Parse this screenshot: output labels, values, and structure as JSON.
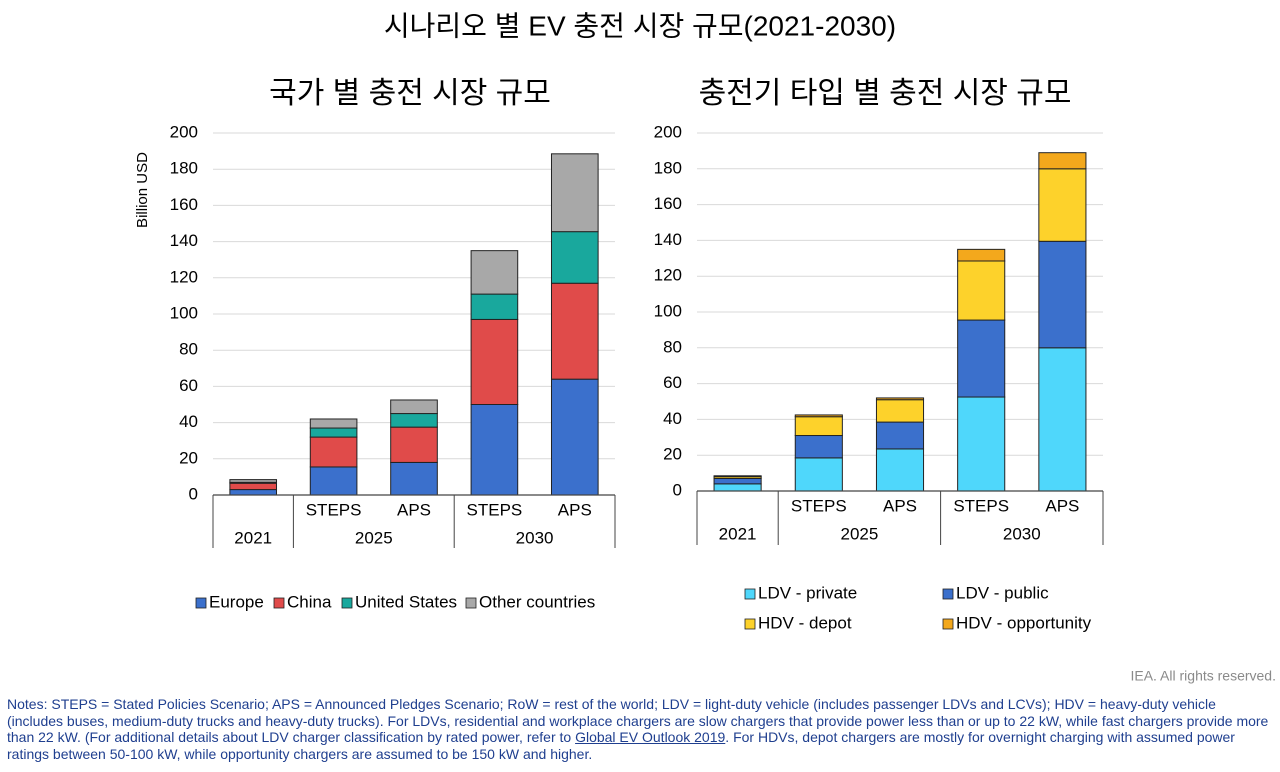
{
  "title": "시나리오 별 EV 충전 시장 규모(2021-2030)",
  "chart_data": [
    {
      "type": "bar",
      "stacked": true,
      "title": "국가 별 충전 시장 규모",
      "y_label": "Billion USD",
      "categories": [
        null,
        "STEPS",
        "APS",
        "STEPS",
        "APS"
      ],
      "groups": [
        {
          "name": "2021",
          "count": 1
        },
        {
          "name": "2025",
          "count": 2
        },
        {
          "name": "2030",
          "count": 2
        }
      ],
      "series": [
        {
          "name": "Europe",
          "color": "#3b70cc",
          "values": [
            3,
            15.5,
            18,
            50,
            64
          ]
        },
        {
          "name": "China",
          "color": "#e04b4a",
          "values": [
            3.5,
            16.5,
            19.5,
            47,
            53
          ]
        },
        {
          "name": "United States",
          "color": "#19a89d",
          "values": [
            0.5,
            5,
            7.5,
            14,
            28.5
          ]
        },
        {
          "name": "Other countries",
          "color": "#a8a8a8",
          "values": [
            1.5,
            5,
            7.5,
            24,
            43
          ]
        }
      ],
      "ylim": [
        0,
        200
      ],
      "yticks": [
        0,
        20,
        40,
        60,
        80,
        100,
        120,
        140,
        160,
        180,
        200
      ],
      "grid": true
    },
    {
      "type": "bar",
      "stacked": true,
      "title": "충전기 타입 별 충전 시장 규모",
      "categories": [
        null,
        "STEPS",
        "APS",
        "STEPS",
        "APS"
      ],
      "groups": [
        {
          "name": "2021",
          "count": 1
        },
        {
          "name": "2025",
          "count": 2
        },
        {
          "name": "2030",
          "count": 2
        }
      ],
      "series": [
        {
          "name": "LDV - private",
          "color": "#4fd7fb",
          "values": [
            4,
            18.5,
            23.5,
            52.5,
            80
          ]
        },
        {
          "name": "LDV - public",
          "color": "#3b70cc",
          "values": [
            3,
            12.5,
            15,
            43,
            59.5
          ]
        },
        {
          "name": "HDV - depot",
          "color": "#fdd22b",
          "values": [
            1,
            10.5,
            12.5,
            33,
            40.5
          ]
        },
        {
          "name": "HDV - opportunity",
          "color": "#f3a81c",
          "values": [
            0.5,
            1,
            1,
            6.5,
            9
          ]
        }
      ],
      "ylim": [
        0,
        200
      ],
      "yticks": [
        0,
        20,
        40,
        60,
        80,
        100,
        120,
        140,
        160,
        180,
        200
      ],
      "grid": true
    }
  ],
  "credit": "IEA. All rights reserved.",
  "notes": {
    "before": "Notes: STEPS = Stated Policies Scenario; APS = Announced Pledges Scenario; RoW = rest of the world; LDV = light-duty vehicle (includes passenger LDVs and LCVs); HDV = heavy-duty vehicle (includes buses, medium-duty trucks and heavy-duty trucks). For LDVs, residential and workplace chargers are slow chargers that provide power less than or up to 22 kW, while fast chargers provide more than 22 kW. (For additional details about LDV charger classification by rated power, refer to",
    "link": "Global EV Outlook 2019",
    "after": ". For HDVs, depot chargers are mostly for overnight charging with assumed power ratings between 50-100 kW, while opportunity chargers are assumed to be 150 kW and higher."
  }
}
